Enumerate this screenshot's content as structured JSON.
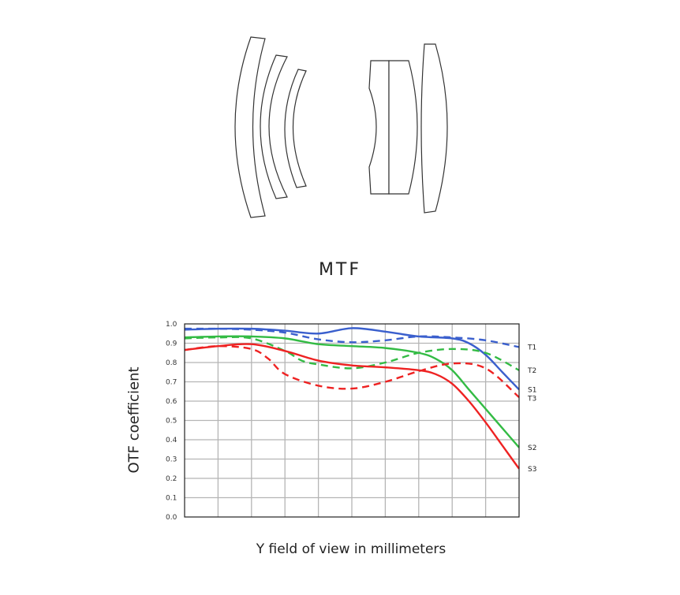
{
  "title": "MTF",
  "chart_data": {
    "type": "line",
    "xlabel": "Y field of view in millimeters",
    "ylabel": "OTF coefficient",
    "x_range": [
      0,
      20
    ],
    "ylim": [
      0,
      1
    ],
    "yticks": [
      "0.0",
      "0.1",
      "0.2",
      "0.3",
      "0.4",
      "0.5",
      "0.6",
      "0.7",
      "0.8",
      "0.9",
      "1.0"
    ],
    "grid": true,
    "series": [
      {
        "name": "T1",
        "color": "#3a5fcd",
        "dash": true,
        "x": [
          0,
          2,
          4,
          6,
          8,
          10,
          12,
          14,
          16,
          18,
          20
        ],
        "y": [
          0.975,
          0.975,
          0.97,
          0.955,
          0.92,
          0.905,
          0.915,
          0.935,
          0.93,
          0.915,
          0.88
        ]
      },
      {
        "name": "S1",
        "color": "#3a5fcd",
        "dash": false,
        "x": [
          0,
          2,
          4,
          6,
          8,
          10,
          12,
          14,
          16,
          17,
          18,
          19,
          20
        ],
        "y": [
          0.97,
          0.975,
          0.975,
          0.965,
          0.95,
          0.978,
          0.96,
          0.935,
          0.925,
          0.9,
          0.84,
          0.75,
          0.66
        ]
      },
      {
        "name": "T2",
        "color": "#33bb44",
        "dash": true,
        "x": [
          0,
          2,
          4,
          6,
          7,
          8,
          10,
          12,
          14,
          16,
          18,
          20
        ],
        "y": [
          0.925,
          0.93,
          0.925,
          0.86,
          0.81,
          0.79,
          0.77,
          0.8,
          0.85,
          0.87,
          0.85,
          0.76
        ]
      },
      {
        "name": "S2",
        "color": "#33bb44",
        "dash": false,
        "x": [
          0,
          2,
          4,
          6,
          8,
          10,
          12,
          14,
          15,
          16,
          17,
          18,
          19,
          20
        ],
        "y": [
          0.93,
          0.935,
          0.935,
          0.925,
          0.895,
          0.885,
          0.875,
          0.85,
          0.82,
          0.76,
          0.66,
          0.56,
          0.46,
          0.36
        ]
      },
      {
        "name": "T3",
        "color": "#ee2222",
        "dash": true,
        "x": [
          0,
          2,
          4,
          5,
          6,
          8,
          10,
          12,
          14,
          16,
          18,
          20
        ],
        "y": [
          0.865,
          0.885,
          0.87,
          0.82,
          0.74,
          0.68,
          0.665,
          0.7,
          0.755,
          0.795,
          0.77,
          0.62
        ]
      },
      {
        "name": "S3",
        "color": "#ee2222",
        "dash": false,
        "x": [
          0,
          2,
          4,
          6,
          8,
          10,
          12,
          14,
          15,
          16,
          17,
          18,
          19,
          20
        ],
        "y": [
          0.865,
          0.885,
          0.895,
          0.86,
          0.81,
          0.785,
          0.775,
          0.76,
          0.74,
          0.69,
          0.6,
          0.49,
          0.37,
          0.25
        ]
      }
    ]
  }
}
